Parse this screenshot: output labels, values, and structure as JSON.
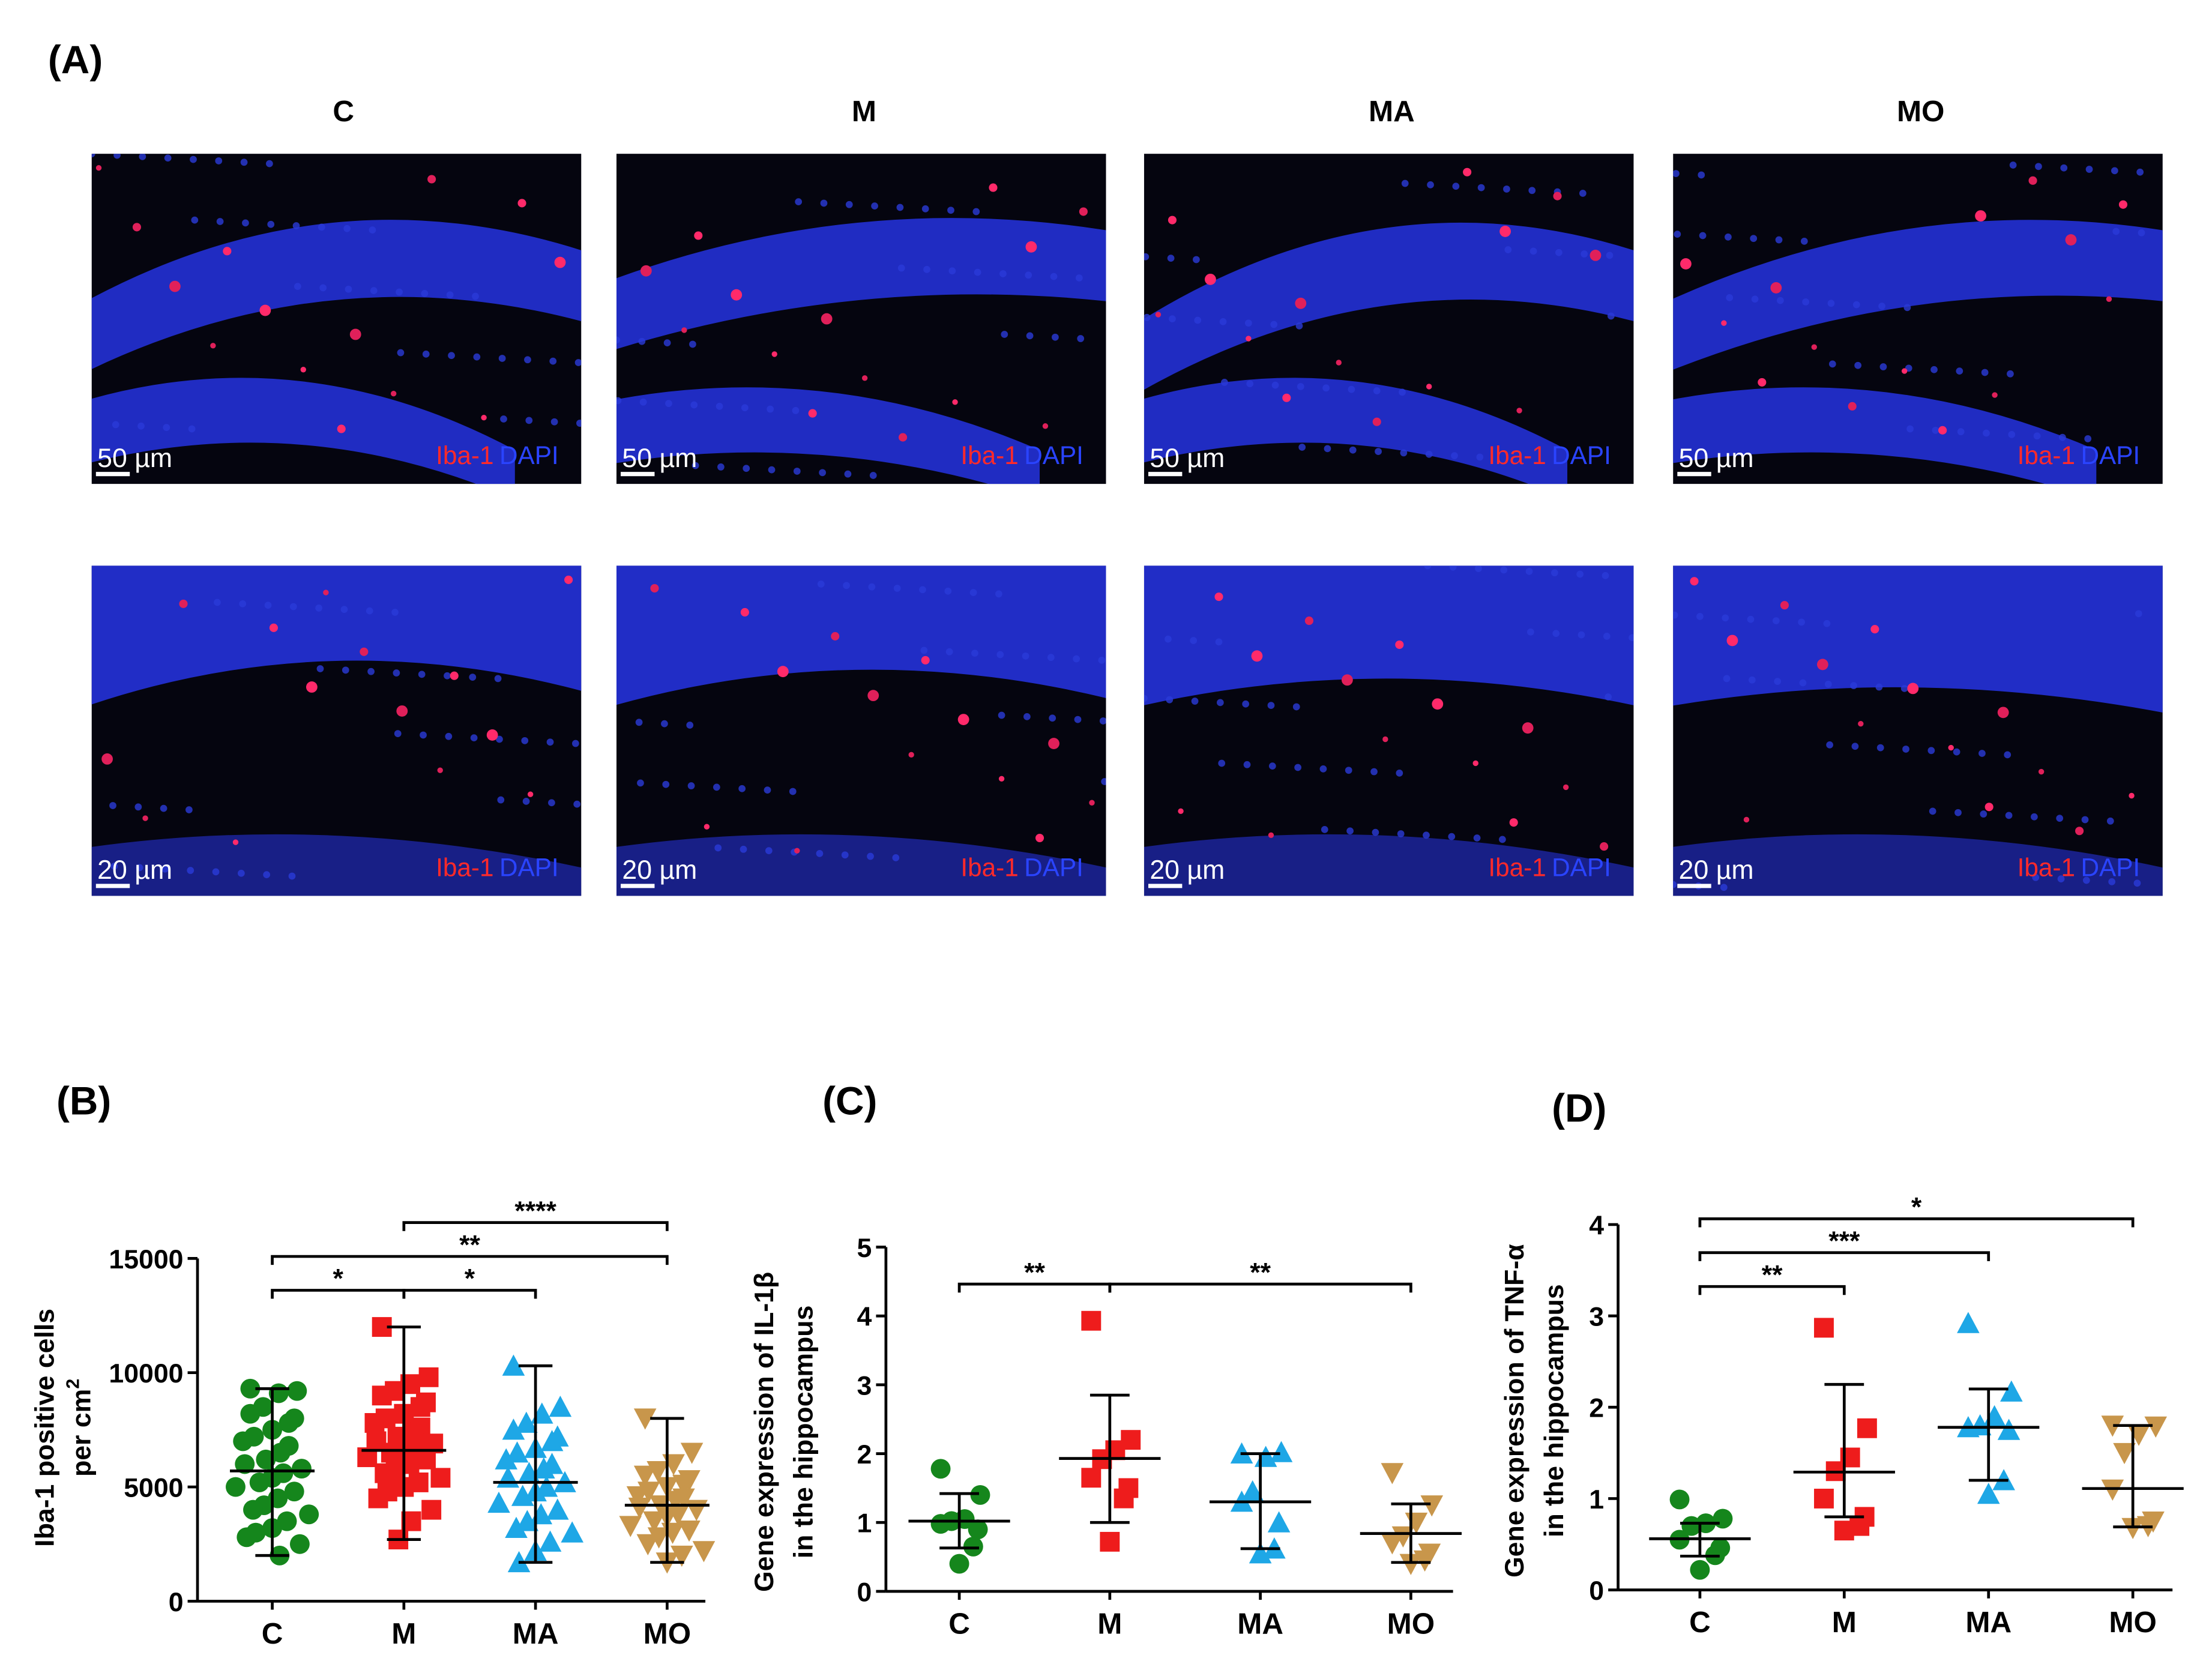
{
  "panel_a": {
    "label": "(A)",
    "columns": [
      "C",
      "M",
      "MA",
      "MO"
    ],
    "rows": [
      {
        "scale": "50 µm"
      },
      {
        "scale": "20 µm"
      }
    ],
    "stain_red": "Iba-1",
    "stain_blue": "DAPI"
  },
  "chart_data": [
    {
      "type": "scatter",
      "panel": "(B)",
      "ylabel": [
        "Iba-1 positive cells",
        "per cm"
      ],
      "ylabel_sup": "2",
      "categories": [
        "C",
        "M",
        "MA",
        "MO"
      ],
      "ylim": [
        0,
        15000
      ],
      "yticks": [
        0,
        5000,
        10000,
        15000
      ],
      "groups": [
        {
          "color": "#15861c",
          "marker": "circle",
          "mean": 5700,
          "whisker": [
            2000,
            9300
          ],
          "values": [
            9300,
            9200,
            9100,
            8500,
            8200,
            8000,
            7800,
            7500,
            7200,
            7000,
            6800,
            6500,
            6200,
            6000,
            5800,
            5600,
            5400,
            5200,
            5000,
            4800,
            4500,
            4200,
            4000,
            3800,
            3500,
            3200,
            3000,
            2800,
            2500,
            2000
          ]
        },
        {
          "color": "#ee1c1c",
          "marker": "square",
          "mean": 6600,
          "whisker": [
            2700,
            12000
          ],
          "values": [
            12000,
            9800,
            9500,
            9200,
            9000,
            8700,
            8500,
            8200,
            8000,
            7800,
            7600,
            7400,
            7200,
            7000,
            6900,
            6800,
            6600,
            6500,
            6300,
            6200,
            6000,
            5800,
            5600,
            5400,
            5200,
            5000,
            4800,
            4500,
            4000,
            3500,
            2700
          ]
        },
        {
          "color": "#1ea7e6",
          "marker": "triangle-up",
          "mean": 5200,
          "whisker": [
            1700,
            10300
          ],
          "values": [
            10300,
            8500,
            8200,
            7800,
            7500,
            7200,
            7000,
            6700,
            6500,
            6200,
            6000,
            5800,
            5600,
            5400,
            5200,
            5000,
            4800,
            4600,
            4300,
            4000,
            3800,
            3500,
            3200,
            3000,
            2600,
            2200,
            1700
          ]
        },
        {
          "color": "#c8964b",
          "marker": "triangle-down",
          "mean": 4200,
          "whisker": [
            1700,
            8000
          ],
          "values": [
            8000,
            6500,
            6000,
            5700,
            5500,
            5300,
            5100,
            5000,
            4800,
            4600,
            4500,
            4400,
            4200,
            4100,
            4000,
            3800,
            3700,
            3500,
            3300,
            3100,
            3000,
            2800,
            2500,
            2200,
            2000,
            1700
          ]
        }
      ],
      "brackets": [
        {
          "from": 0,
          "to": 1,
          "label": "*"
        },
        {
          "from": 1,
          "to": 2,
          "label": "*"
        },
        {
          "from": 0,
          "to": 3,
          "label": "**"
        },
        {
          "from": 1,
          "to": 3,
          "label": "****"
        }
      ]
    },
    {
      "type": "scatter",
      "panel": "(C)",
      "ylabel": [
        "Gene expression of IL-1β",
        "in the hippocampus"
      ],
      "categories": [
        "C",
        "M",
        "MA",
        "MO"
      ],
      "ylim": [
        0,
        5
      ],
      "yticks": [
        0,
        1,
        2,
        3,
        4,
        5
      ],
      "groups": [
        {
          "color": "#15861c",
          "marker": "circle",
          "mean": 1.02,
          "whisker": [
            0.63,
            1.42
          ],
          "values": [
            1.78,
            1.4,
            1.05,
            1.02,
            0.98,
            0.9,
            0.65,
            0.4
          ]
        },
        {
          "color": "#ee1c1c",
          "marker": "square",
          "mean": 1.93,
          "whisker": [
            1.0,
            2.85
          ],
          "values": [
            3.93,
            2.2,
            2.05,
            1.92,
            1.65,
            1.5,
            1.35,
            0.72
          ]
        },
        {
          "color": "#1ea7e6",
          "marker": "triangle-up",
          "mean": 1.3,
          "whisker": [
            0.62,
            2.0
          ],
          "values": [
            2.0,
            2.02,
            1.95,
            1.45,
            1.3,
            1.0,
            0.62,
            0.55
          ]
        },
        {
          "color": "#c8964b",
          "marker": "triangle-down",
          "mean": 0.84,
          "whisker": [
            0.42,
            1.27
          ],
          "values": [
            1.72,
            1.25,
            1.0,
            0.8,
            0.7,
            0.55,
            0.45,
            0.4
          ]
        }
      ],
      "brackets": [
        {
          "from": 0,
          "to": 1,
          "label": "**"
        },
        {
          "from": 1,
          "to": 3,
          "label": "**"
        }
      ]
    },
    {
      "type": "scatter",
      "panel": "(D)",
      "ylabel": [
        "Gene expression of TNF-α",
        "in the hippocampus"
      ],
      "categories": [
        "C",
        "M",
        "MA",
        "MO"
      ],
      "ylim": [
        0,
        4
      ],
      "yticks": [
        0,
        1,
        2,
        3,
        4
      ],
      "groups": [
        {
          "color": "#15861c",
          "marker": "circle",
          "mean": 0.56,
          "whisker": [
            0.37,
            0.73
          ],
          "values": [
            0.99,
            0.78,
            0.73,
            0.7,
            0.55,
            0.46,
            0.38,
            0.22
          ]
        },
        {
          "color": "#ee1c1c",
          "marker": "square",
          "mean": 1.29,
          "whisker": [
            0.8,
            2.25
          ],
          "values": [
            2.87,
            1.77,
            1.45,
            1.3,
            1.0,
            0.8,
            0.7,
            0.65
          ]
        },
        {
          "color": "#1ea7e6",
          "marker": "triangle-up",
          "mean": 1.78,
          "whisker": [
            1.2,
            2.2
          ],
          "values": [
            2.92,
            2.17,
            1.9,
            1.8,
            1.78,
            1.75,
            1.2,
            1.05
          ]
        },
        {
          "color": "#c8964b",
          "marker": "triangle-down",
          "mean": 1.11,
          "whisker": [
            0.69,
            1.8
          ],
          "values": [
            1.8,
            1.79,
            1.7,
            1.5,
            1.1,
            0.75,
            0.7,
            0.68
          ]
        }
      ],
      "brackets": [
        {
          "from": 0,
          "to": 1,
          "label": "**"
        },
        {
          "from": 0,
          "to": 2,
          "label": "***"
        },
        {
          "from": 0,
          "to": 3,
          "label": "*"
        }
      ]
    }
  ]
}
